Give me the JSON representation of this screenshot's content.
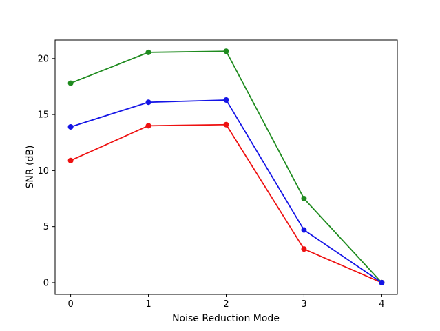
{
  "figure": {
    "background": "#ffffff",
    "title": ""
  },
  "chart_data": {
    "type": "line",
    "title": "",
    "xlabel": "Noise Reduction Mode",
    "ylabel": "SNR (dB)",
    "x": [
      0,
      1,
      2,
      3,
      4
    ],
    "xticks": [
      "0",
      "1",
      "2",
      "3",
      "4"
    ],
    "yticks": [
      "0",
      "5",
      "10",
      "15",
      "20"
    ],
    "ytick_values": [
      0,
      5,
      10,
      15,
      20
    ],
    "xlim": [
      -0.2,
      4.2
    ],
    "ylim": [
      -1.05,
      21.65
    ],
    "grid": false,
    "legend": "none",
    "marker": "circle",
    "series": [
      {
        "name": "red-series",
        "color": "#ee1111",
        "values": [
          10.9,
          14.0,
          14.1,
          3.0,
          0.0
        ]
      },
      {
        "name": "green-series",
        "color": "#1f8b1f",
        "values": [
          17.8,
          20.55,
          20.65,
          7.5,
          0.0
        ]
      },
      {
        "name": "blue-series",
        "color": "#1414e6",
        "values": [
          13.9,
          16.1,
          16.3,
          4.7,
          0.0
        ]
      }
    ]
  }
}
